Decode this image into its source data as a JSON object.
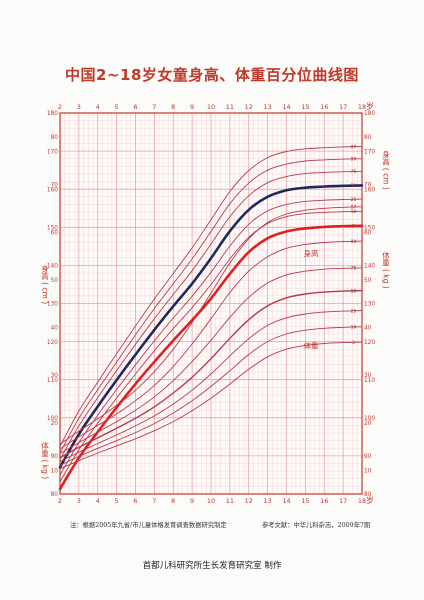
{
  "title": "中国2~18岁女童身高、体重百分位曲线图",
  "notes": {
    "source": "注：根据2005年九省/市儿童体格发育调查数据研究制定",
    "reference": "参考文献：中华儿科杂志，2009年7期"
  },
  "credit": "首都儿科研究所生长发育研究室 制作",
  "axis_unit_age": "岁",
  "labels": {
    "height_right": "身高 ( cm )",
    "height_left": "身高 ( cm )",
    "weight_right": "体重 ( kg )",
    "weight_left": "体重 ( kg )",
    "height_curve": "身高",
    "weight_curve": "体重"
  },
  "colors": {
    "grid": "#e59a9a",
    "axis": "#c0392b",
    "curve": "#b83a4a",
    "p50": "#1e2a5a",
    "p3": "#e02020"
  },
  "chart_data": [
    {
      "type": "line",
      "title": "",
      "xlabel": "岁",
      "ylabel": "身高 ( cm )",
      "xlim": [
        2,
        18
      ],
      "ylim": [
        80,
        180
      ],
      "x_ticks": [
        2,
        3,
        4,
        5,
        6,
        7,
        8,
        9,
        10,
        11,
        12,
        13,
        14,
        15,
        16,
        17,
        18
      ],
      "y_ticks": [
        80,
        90,
        100,
        110,
        120,
        130,
        140,
        150,
        160,
        170,
        180
      ],
      "x": [
        2,
        3,
        4,
        5,
        6,
        7,
        8,
        9,
        10,
        11,
        12,
        13,
        14,
        15,
        16,
        17,
        18
      ],
      "series": [
        {
          "name": "97",
          "values": [
            92.5,
            101.8,
            109.4,
            116.8,
            124.1,
            131.2,
            137.9,
            144.6,
            152.0,
            159.4,
            164.9,
            168.3,
            169.9,
            170.6,
            170.9,
            171.1,
            171.2
          ]
        },
        {
          "name": "90",
          "values": [
            90.8,
            99.9,
            107.4,
            114.6,
            121.8,
            128.7,
            135.2,
            141.7,
            148.9,
            156.2,
            161.6,
            165.0,
            166.6,
            167.4,
            167.7,
            167.9,
            168.0
          ]
        },
        {
          "name": "75",
          "values": [
            89.0,
            97.9,
            105.3,
            112.4,
            119.3,
            126.0,
            132.4,
            138.6,
            145.6,
            152.8,
            158.3,
            161.7,
            163.3,
            164.1,
            164.4,
            164.6,
            164.7
          ]
        },
        {
          "name": "50",
          "values": [
            87.0,
            95.7,
            103.0,
            109.9,
            116.6,
            123.1,
            129.3,
            135.2,
            141.9,
            149.0,
            154.6,
            158.0,
            159.7,
            160.4,
            160.7,
            160.9,
            161.0
          ]
        },
        {
          "name": "25",
          "values": [
            85.0,
            93.5,
            100.7,
            107.4,
            113.9,
            120.2,
            126.2,
            131.9,
            138.2,
            145.1,
            150.8,
            154.3,
            156.0,
            156.8,
            157.1,
            157.3,
            157.4
          ]
        },
        {
          "name": "10",
          "values": [
            83.2,
            91.6,
            98.6,
            105.2,
            111.5,
            117.6,
            123.4,
            128.9,
            135.0,
            141.7,
            147.4,
            151.0,
            152.8,
            153.6,
            153.9,
            154.1,
            154.2
          ]
        },
        {
          "name": "3",
          "values": [
            81.3,
            89.5,
            96.3,
            102.7,
            108.9,
            114.7,
            120.3,
            125.6,
            131.3,
            137.8,
            143.5,
            147.1,
            148.9,
            149.7,
            150.1,
            150.3,
            150.4
          ]
        }
      ]
    },
    {
      "type": "line",
      "title": "",
      "xlabel": "岁",
      "ylabel": "体重 ( kg )",
      "xlim": [
        2,
        18
      ],
      "ylim": [
        5,
        85
      ],
      "y_ticks": [
        10,
        20,
        30,
        40,
        50,
        60,
        70,
        80
      ],
      "x": [
        2,
        3,
        4,
        5,
        6,
        7,
        8,
        9,
        10,
        11,
        12,
        13,
        14,
        15,
        16,
        17,
        18
      ],
      "series": [
        {
          "name": "97",
          "values": [
            15.5,
            18.2,
            20.8,
            23.6,
            26.8,
            30.7,
            35.4,
            41.0,
            47.2,
            53.5,
            58.6,
            62.0,
            63.8,
            64.6,
            65.0,
            65.2,
            65.3
          ]
        },
        {
          "name": "90",
          "values": [
            14.5,
            17.0,
            19.4,
            21.8,
            24.6,
            27.8,
            31.8,
            36.5,
            41.8,
            47.3,
            51.8,
            54.8,
            56.6,
            57.4,
            57.8,
            58.0,
            58.1
          ]
        },
        {
          "name": "75",
          "values": [
            13.5,
            15.8,
            18.0,
            20.2,
            22.6,
            25.4,
            28.8,
            32.8,
            37.3,
            42.1,
            46.3,
            49.3,
            51.0,
            51.8,
            52.2,
            52.4,
            52.5
          ]
        },
        {
          "name": "50",
          "values": [
            12.6,
            14.8,
            16.8,
            18.8,
            20.9,
            23.3,
            26.2,
            29.5,
            33.4,
            37.7,
            41.6,
            44.5,
            46.2,
            47.0,
            47.4,
            47.6,
            47.7
          ]
        },
        {
          "name": "25",
          "values": [
            11.8,
            13.8,
            15.6,
            17.4,
            19.3,
            21.4,
            23.9,
            26.8,
            30.2,
            34.0,
            37.6,
            40.4,
            42.0,
            42.8,
            43.2,
            43.4,
            43.5
          ]
        },
        {
          "name": "10",
          "values": [
            11.0,
            12.9,
            14.6,
            16.2,
            17.9,
            19.8,
            22.0,
            24.6,
            27.6,
            30.9,
            34.3,
            37.0,
            38.6,
            39.4,
            39.8,
            40.0,
            40.1
          ]
        },
        {
          "name": "3",
          "values": [
            10.3,
            12.0,
            13.6,
            15.1,
            16.6,
            18.3,
            20.2,
            22.5,
            25.1,
            28.1,
            31.2,
            33.8,
            35.4,
            36.2,
            36.6,
            36.8,
            36.9
          ]
        }
      ]
    }
  ]
}
